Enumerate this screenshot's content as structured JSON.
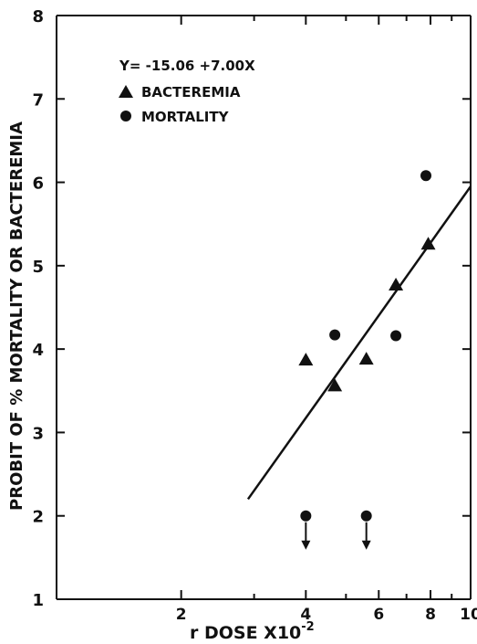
{
  "chart_data": {
    "type": "scatter",
    "title": "",
    "xlabel": "r DOSE X10",
    "xlabel_exponent": "-2",
    "ylabel": "PROBIT OF % MORTALITY OR BACTEREMIA",
    "x_scale": "log",
    "xlim": [
      1,
      10
    ],
    "ylim": [
      1,
      8
    ],
    "x_ticks": [
      {
        "value": 2,
        "label": "2"
      },
      {
        "value": 4,
        "label": "4"
      },
      {
        "value": 6,
        "label": "6"
      },
      {
        "value": 8,
        "label": "8"
      },
      {
        "value": 10,
        "label": "10"
      }
    ],
    "x_minor_ticks": [
      3,
      5,
      7,
      9
    ],
    "y_ticks": [
      1,
      2,
      3,
      4,
      5,
      6,
      7,
      8
    ],
    "grid": false,
    "legend_position": "top-left",
    "equation": "Y= -15.06 +7.00X",
    "series": [
      {
        "name": "BACTEREMIA",
        "marker": "triangle",
        "points": [
          {
            "x": 4.0,
            "y": 3.88
          },
          {
            "x": 4.7,
            "y": 3.57
          },
          {
            "x": 5.6,
            "y": 3.89
          },
          {
            "x": 6.6,
            "y": 4.78
          },
          {
            "x": 7.9,
            "y": 5.27
          }
        ]
      },
      {
        "name": "MORTALITY",
        "marker": "circle",
        "points": [
          {
            "x": 4.0,
            "y": 2.0,
            "below_detection": true
          },
          {
            "x": 4.7,
            "y": 4.17
          },
          {
            "x": 5.6,
            "y": 2.0,
            "below_detection": true
          },
          {
            "x": 6.6,
            "y": 4.16
          },
          {
            "x": 7.8,
            "y": 6.08
          }
        ]
      }
    ],
    "fit_line": {
      "x": [
        2.9,
        10
      ],
      "y": [
        2.2,
        5.95
      ]
    },
    "colors": {
      "ink": "#111111",
      "background": "#ffffff"
    }
  }
}
